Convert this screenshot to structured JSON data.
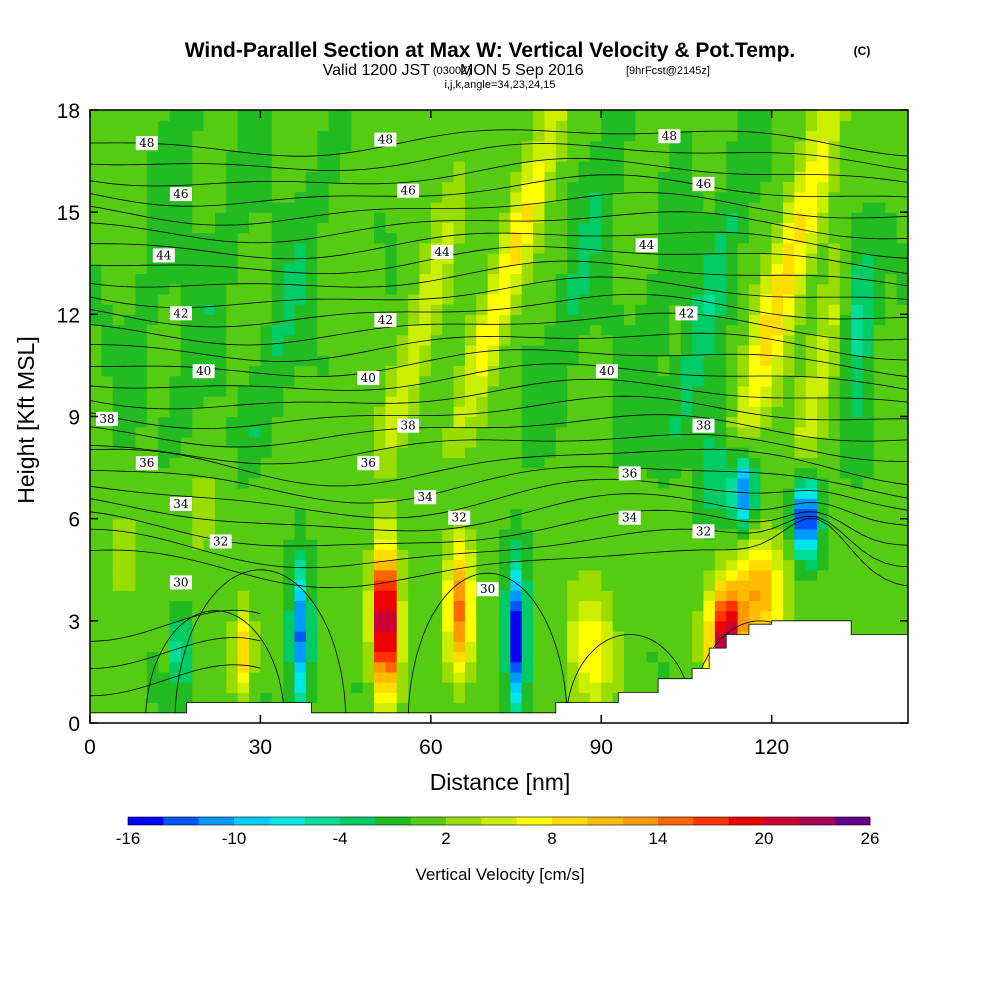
{
  "chart_data": {
    "type": "heatmap",
    "title": "Wind-Parallel Section at Max W: Vertical Velocity & Pot.Temp.",
    "title_mark": "(C)",
    "subtitle_parts": [
      "Valid 1200 JST",
      "(0300Z)",
      "MON 5 Sep 2016",
      "[9hrFcst@2145z]"
    ],
    "subtitle_small": "i,j,k,angle=34,23,24,15",
    "xlabel": "Distance [nm]",
    "ylabel": "Height [Kft MSL]",
    "xlim": [
      0,
      144
    ],
    "ylim": [
      0,
      18
    ],
    "x_ticks": [
      0,
      30,
      60,
      90,
      120
    ],
    "y_ticks": [
      0,
      3,
      6,
      9,
      12,
      15,
      18
    ],
    "colorbar": {
      "label": "Vertical Velocity [cm/s]",
      "ticks": [
        "-16",
        "-10",
        "-4",
        "2",
        "8",
        "14",
        "20",
        "26"
      ],
      "levels": [
        -16,
        -14,
        -12,
        -10,
        -8,
        -6,
        -4,
        -2,
        0,
        2,
        4,
        6,
        8,
        10,
        12,
        14,
        16,
        18,
        20,
        22,
        24,
        26
      ],
      "colors": [
        "#0000ff",
        "#0055ff",
        "#0099ff",
        "#00ccff",
        "#00e6e6",
        "#00dd99",
        "#00cc66",
        "#22bb22",
        "#55cc11",
        "#99dd00",
        "#ccee00",
        "#ffff00",
        "#ffdd00",
        "#ffbb00",
        "#ff9900",
        "#ff6600",
        "#ff3300",
        "#ee0000",
        "#cc0033",
        "#aa0055",
        "#660088"
      ]
    },
    "theta_contours": {
      "label_levels": [
        30,
        32,
        34,
        36,
        38,
        40,
        42,
        44,
        46,
        48
      ],
      "labels": [
        {
          "text": "48",
          "x": 10,
          "y": 17.0
        },
        {
          "text": "48",
          "x": 52,
          "y": 17.1
        },
        {
          "text": "48",
          "x": 102,
          "y": 17.2
        },
        {
          "text": "46",
          "x": 16,
          "y": 15.5
        },
        {
          "text": "46",
          "x": 56,
          "y": 15.6
        },
        {
          "text": "46",
          "x": 108,
          "y": 15.8
        },
        {
          "text": "44",
          "x": 13,
          "y": 13.7
        },
        {
          "text": "44",
          "x": 62,
          "y": 13.8
        },
        {
          "text": "44",
          "x": 98,
          "y": 14.0
        },
        {
          "text": "42",
          "x": 16,
          "y": 12.0
        },
        {
          "text": "42",
          "x": 52,
          "y": 11.8
        },
        {
          "text": "42",
          "x": 105,
          "y": 12.0
        },
        {
          "text": "40",
          "x": 20,
          "y": 10.3
        },
        {
          "text": "40",
          "x": 49,
          "y": 10.1
        },
        {
          "text": "40",
          "x": 91,
          "y": 10.3
        },
        {
          "text": "38",
          "x": 3,
          "y": 8.9
        },
        {
          "text": "38",
          "x": 56,
          "y": 8.7
        },
        {
          "text": "38",
          "x": 108,
          "y": 8.7
        },
        {
          "text": "36",
          "x": 10,
          "y": 7.6
        },
        {
          "text": "36",
          "x": 49,
          "y": 7.6
        },
        {
          "text": "36",
          "x": 95,
          "y": 7.3
        },
        {
          "text": "34",
          "x": 16,
          "y": 6.4
        },
        {
          "text": "34",
          "x": 59,
          "y": 6.6
        },
        {
          "text": "34",
          "x": 95,
          "y": 6.0
        },
        {
          "text": "32",
          "x": 23,
          "y": 5.3
        },
        {
          "text": "32",
          "x": 65,
          "y": 6.0
        },
        {
          "text": "32",
          "x": 108,
          "y": 5.6
        },
        {
          "text": "30",
          "x": 16,
          "y": 4.1
        },
        {
          "text": "30",
          "x": 70,
          "y": 3.9
        }
      ]
    }
  }
}
